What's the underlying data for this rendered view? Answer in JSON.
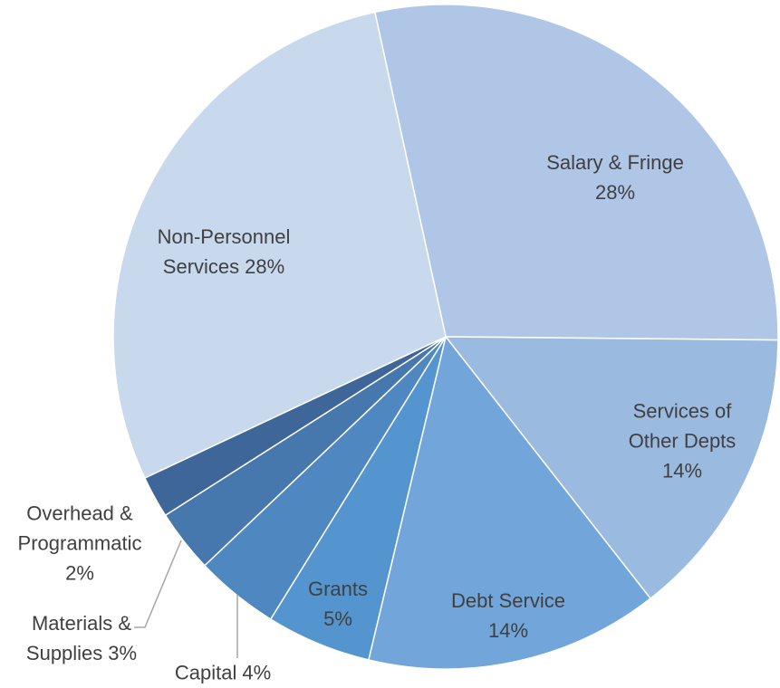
{
  "chart_data": {
    "type": "pie",
    "categories": [
      "Salary & Fringe",
      "Services of Other Depts",
      "Debt Service",
      "Grants",
      "Capital",
      "Materials & Supplies",
      "Overhead & Programmatic",
      "Non-Personnel Services"
    ],
    "values": [
      28,
      14,
      14,
      5,
      4,
      3,
      2,
      28
    ],
    "value_labels": [
      "28%",
      "14%",
      "14%",
      "5%",
      "4%",
      "3%",
      "2%",
      "28%"
    ],
    "colors": [
      "#afc6e6",
      "#9bbae0",
      "#72a5d9",
      "#5495cf",
      "#4f87c0",
      "#4677ad",
      "#3e6698",
      "#c8d9ee"
    ]
  }
}
